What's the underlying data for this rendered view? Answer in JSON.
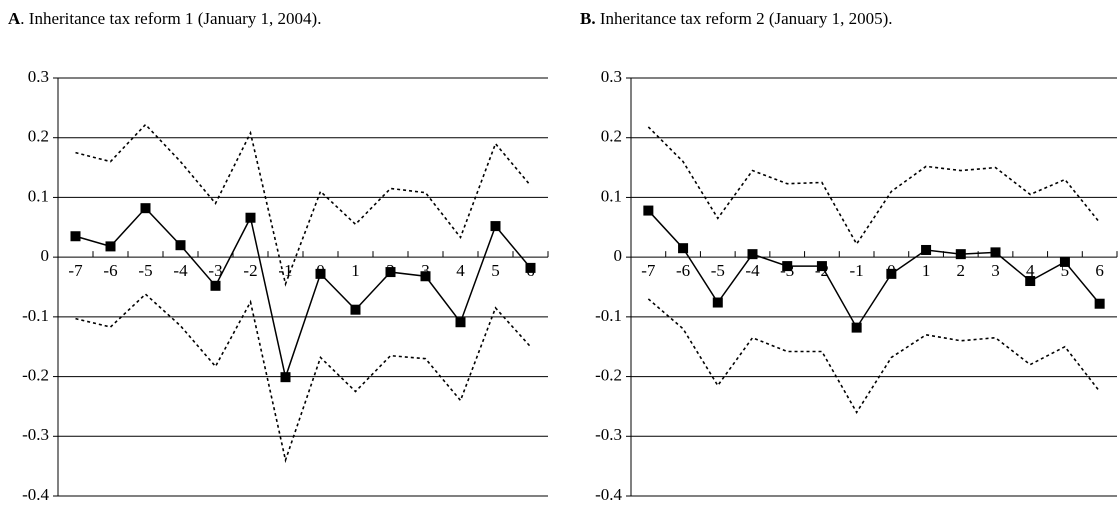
{
  "chart_data": [
    {
      "type": "line",
      "panel_label": "A",
      "title": ". Inheritance tax reform 1 (January 1, 2004).",
      "categories": [
        "-7",
        "-6",
        "-5",
        "-4",
        "-3",
        "-2",
        "-1",
        "0",
        "1",
        "2",
        "3",
        "4",
        "5",
        "6"
      ],
      "ylim": [
        -0.4,
        0.3
      ],
      "yticks": [
        0.3,
        0.2,
        0.1,
        0,
        -0.1,
        -0.2,
        -0.3,
        -0.4
      ],
      "grid": true,
      "series": [
        {
          "color": "#000000",
          "marker": "square",
          "dashed": false,
          "values": [
            0.035,
            0.018,
            0.082,
            0.02,
            -0.048,
            0.066,
            -0.201,
            -0.028,
            -0.088,
            -0.025,
            -0.032,
            -0.109,
            0.052,
            -0.018
          ]
        },
        {
          "color": "#000000",
          "marker": "none",
          "dashed": true,
          "values": [
            0.175,
            0.16,
            0.222,
            0.16,
            0.09,
            0.208,
            -0.045,
            0.11,
            0.055,
            0.115,
            0.108,
            0.033,
            0.19,
            0.12
          ]
        },
        {
          "color": "#000000",
          "marker": "none",
          "dashed": true,
          "values": [
            -0.103,
            -0.117,
            -0.062,
            -0.115,
            -0.183,
            -0.075,
            -0.34,
            -0.168,
            -0.225,
            -0.165,
            -0.17,
            -0.24,
            -0.085,
            -0.15
          ]
        }
      ]
    },
    {
      "type": "line",
      "panel_label": "B.",
      "title": " Inheritance tax reform 2 (January 1, 2005).",
      "categories": [
        "-7",
        "-6",
        "-5",
        "-4",
        "-3",
        "-2",
        "-1",
        "0",
        "1",
        "2",
        "3",
        "4",
        "5",
        "6"
      ],
      "ylim": [
        -0.4,
        0.3
      ],
      "yticks": [
        0.3,
        0.2,
        0.1,
        0,
        -0.1,
        -0.2,
        -0.3,
        -0.4
      ],
      "grid": true,
      "series": [
        {
          "color": "#000000",
          "marker": "square",
          "dashed": false,
          "values": [
            0.078,
            0.015,
            -0.076,
            0.005,
            -0.015,
            -0.015,
            -0.118,
            -0.028,
            0.012,
            0.005,
            0.008,
            -0.04,
            -0.008,
            -0.078
          ]
        },
        {
          "color": "#000000",
          "marker": "none",
          "dashed": true,
          "values": [
            0.218,
            0.16,
            0.065,
            0.145,
            0.123,
            0.125,
            0.022,
            0.11,
            0.152,
            0.145,
            0.15,
            0.105,
            0.13,
            0.058
          ]
        },
        {
          "color": "#000000",
          "marker": "none",
          "dashed": true,
          "values": [
            -0.07,
            -0.12,
            -0.215,
            -0.135,
            -0.158,
            -0.158,
            -0.26,
            -0.168,
            -0.13,
            -0.14,
            -0.135,
            -0.18,
            -0.15,
            -0.225
          ]
        }
      ]
    }
  ]
}
